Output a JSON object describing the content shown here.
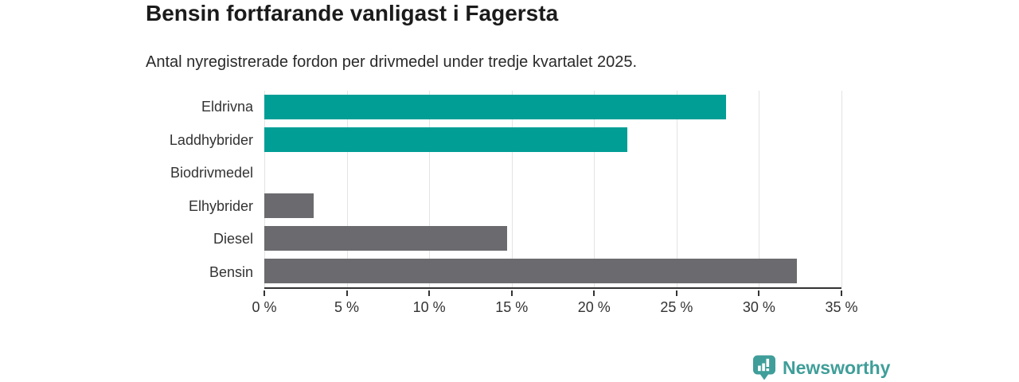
{
  "header": {
    "title": "Bensin fortfarande vanligast i Fagersta",
    "subtitle": "Antal nyregistrerade fordon per drivmedel under tredje kvartalet 2025."
  },
  "chart_data": {
    "type": "bar",
    "orientation": "horizontal",
    "title": "Bensin fortfarande vanligast i Fagersta",
    "subtitle": "Antal nyregistrerade fordon per drivmedel under tredje kvartalet 2025.",
    "categories": [
      "Eldrivna",
      "Laddhybrider",
      "Biodrivmedel",
      "Elhybrider",
      "Diesel",
      "Bensin"
    ],
    "values": [
      28,
      22,
      0,
      3,
      14.7,
      32.3
    ],
    "unit": "%",
    "xlim": [
      0,
      35
    ],
    "x_ticks": [
      0,
      5,
      10,
      15,
      20,
      25,
      30,
      35
    ],
    "x_tick_labels": [
      "0 %",
      "5 %",
      "10 %",
      "15 %",
      "20 %",
      "25 %",
      "30 %",
      "35 %"
    ],
    "bar_colors": [
      "#019e96",
      "#019e96",
      "#6b6b6f",
      "#6b6b6f",
      "#6b6b6f",
      "#6b6b6f"
    ],
    "grid": "vertical-gridlines",
    "legend": "none"
  },
  "colors": {
    "highlight_teal": "#019e96",
    "default_gray": "#6b6b6f",
    "gridline": "#e3e3e3",
    "axis": "#333333",
    "brand": "#3f9e99"
  },
  "branding": {
    "logo_text": "Newsworthy",
    "logo_icon": "newsworthy-pin-bar-chart-icon"
  }
}
